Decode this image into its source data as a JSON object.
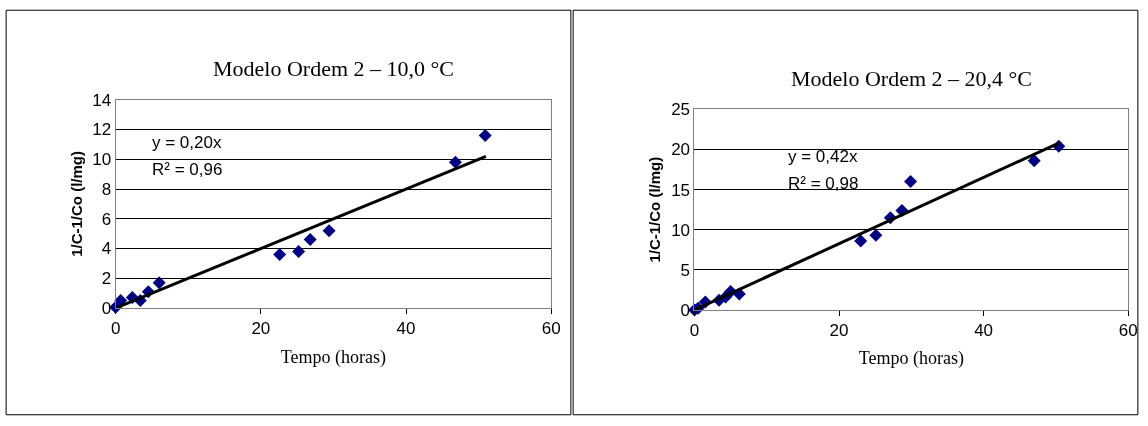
{
  "chart_data": [
    {
      "type": "scatter",
      "title": "Modelo Ordem 2 – 10,0 °C",
      "xlabel": "Tempo (horas)",
      "ylabel": "1/C-1/Co (l/mg)",
      "xlim": [
        0,
        60
      ],
      "xticks": [
        0,
        20,
        40,
        60
      ],
      "ylim": [
        0,
        14
      ],
      "yticks": [
        0,
        2,
        4,
        6,
        8,
        10,
        12,
        14
      ],
      "grid": "y",
      "marker": "diamond",
      "series": [
        {
          "color": "#000080",
          "x": [
            0,
            0.7,
            2.3,
            3.4,
            4.5,
            6,
            22.6,
            25.2,
            26.8,
            29.4,
            46.8,
            50.9
          ],
          "values": [
            0.05,
            0.5,
            0.7,
            0.5,
            1.1,
            1.7,
            3.6,
            3.8,
            4.6,
            5.2,
            9.8,
            11.6
          ]
        },
        {
          "type": "line",
          "color": "#000000",
          "marker": "none",
          "x": [
            0,
            51
          ],
          "values": [
            0,
            10.2
          ]
        }
      ],
      "annotations": [
        "y = 0,20x",
        "R² = 0,96"
      ]
    },
    {
      "type": "scatter",
      "title": "Modelo Ordem 2 – 20,4 °C",
      "xlabel": "Tempo (horas)",
      "ylabel": "1/C-1/Co (l/mg)",
      "xlim": [
        0,
        60
      ],
      "xticks": [
        0,
        20,
        40,
        60
      ],
      "ylim": [
        0,
        25
      ],
      "yticks": [
        0,
        5,
        10,
        15,
        20,
        25
      ],
      "grid": "y",
      "marker": "diamond",
      "series": [
        {
          "color": "#000080",
          "x": [
            0,
            0.5,
            1.5,
            3.4,
            4.3,
            5,
            6.2,
            23,
            25.1,
            27.1,
            28.7,
            29.9,
            47,
            50.4
          ],
          "values": [
            0,
            0.2,
            1.0,
            1.2,
            1.6,
            2.3,
            2.0,
            8.6,
            9.3,
            11.5,
            12.4,
            16.0,
            18.6,
            20.4
          ]
        },
        {
          "type": "line",
          "color": "#000000",
          "marker": "none",
          "x": [
            0,
            50.4
          ],
          "values": [
            0,
            20.8
          ]
        }
      ],
      "annotations": [
        "y = 0,42x",
        "R² = 0,98"
      ]
    }
  ]
}
